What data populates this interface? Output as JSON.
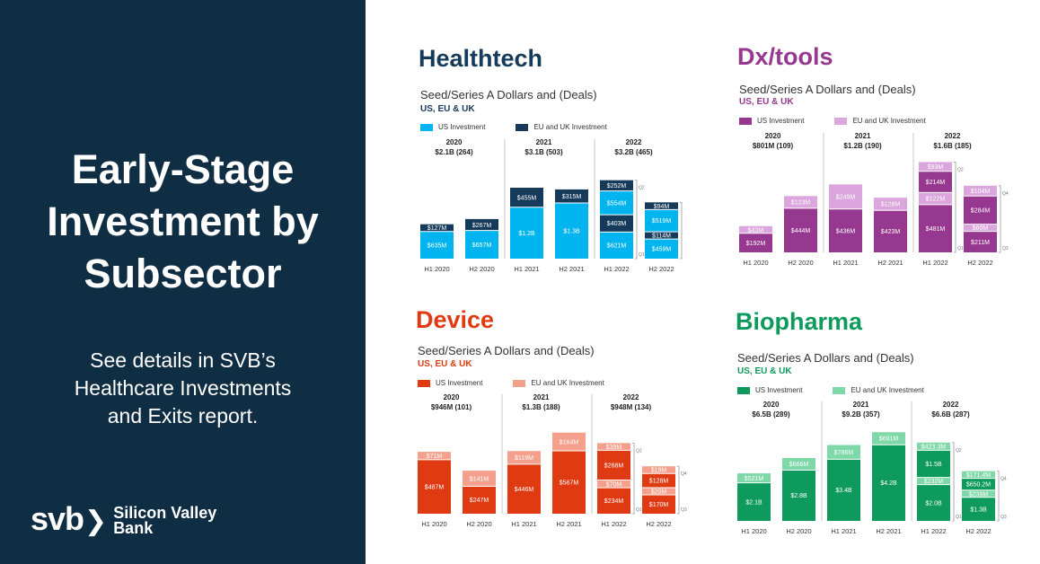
{
  "left": {
    "headline_lines": [
      "Early-Stage",
      "Investment by",
      "Subsector"
    ],
    "subtext_lines": [
      "See details in SVB’s",
      "Healthcare Investments",
      "and Exits report."
    ],
    "logo_mark": "svb",
    "logo_name_lines": [
      "Silicon Valley",
      "Bank"
    ],
    "bg_color": "#0f2d43"
  },
  "chart_data": [
    {
      "type": "bar",
      "title": "Healthtech",
      "subtitle": "Seed/Series A   Dollars and (Deals)",
      "region": "US, EU & UK",
      "legend": [
        "US Investment",
        "EU and UK Investment"
      ],
      "colors": {
        "us": "#00b5ef",
        "eu": "#153a5a",
        "title": "#153a5a",
        "label_us": "#ffffff",
        "label_eu": "#ffffff"
      },
      "categories": [
        "H1 2020",
        "H2 2020",
        "H1 2021",
        "H2 2021",
        "H1 2022",
        "H2 2022"
      ],
      "years": [
        {
          "year": "2020",
          "total": "$2.1B (264)"
        },
        {
          "year": "2021",
          "total": "$3.1B (503)"
        },
        {
          "year": "2022",
          "total": "$3.2B (465)"
        }
      ],
      "series": [
        {
          "name": "US Investment",
          "values": [
            635,
            657,
            1200,
            1300,
            621,
            459
          ],
          "labels": [
            "$635M",
            "$657M",
            "$1.2B",
            "$1.3B",
            "$621M",
            "$459M"
          ]
        },
        {
          "name": "EU and UK Investment",
          "values": [
            127,
            267,
            455,
            315,
            403,
            114
          ],
          "labels": [
            "$127M",
            "$267M",
            "$455M",
            "$315M",
            "$403M",
            "$114M"
          ]
        }
      ],
      "quarters": {
        "h1_2022_extra": {
          "us": {
            "value": 554,
            "label": "$554M"
          },
          "eu": {
            "value": 252,
            "label": "$252M"
          }
        },
        "h2_2022_extra": {
          "us": {
            "value": 519,
            "label": "$519M"
          },
          "eu": {
            "value": 94,
            "label": "$94M"
          }
        },
        "q_labels": [
          "Q1",
          "Q2",
          "Q3",
          "Q4"
        ]
      },
      "ylim": [
        0,
        2200
      ]
    },
    {
      "type": "bar",
      "title": "Dx/tools",
      "subtitle": "Seed/Series A   Dollars and (Deals)",
      "region": "US, EU & UK",
      "legend": [
        "US Investment",
        "EU and UK Investment"
      ],
      "colors": {
        "us": "#96388f",
        "eu": "#dba5dd",
        "title": "#96388f",
        "label_us": "#ffffff",
        "label_eu": "#ffffff"
      },
      "categories": [
        "H1 2020",
        "H2 2020",
        "H1 2021",
        "H2 2021",
        "H1 2022",
        "H2 2022"
      ],
      "years": [
        {
          "year": "2020",
          "total": "$801M (109)"
        },
        {
          "year": "2021",
          "total": "$1.2B (190)"
        },
        {
          "year": "2022",
          "total": "$1.6B (185)"
        }
      ],
      "series": [
        {
          "name": "US Investment",
          "values": [
            192,
            444,
            436,
            423,
            481,
            211
          ],
          "labels": [
            "$192M",
            "$444M",
            "$436M",
            "$423M",
            "$481M",
            "$211M"
          ]
        },
        {
          "name": "EU and UK Investment",
          "values": [
            43,
            123,
            249,
            128,
            122,
            60
          ],
          "labels": [
            "$43M",
            "$123M",
            "$249M",
            "$128M",
            "$122M",
            "$60M"
          ]
        }
      ],
      "quarters": {
        "h1_2022_extra": {
          "us": {
            "value": 214,
            "label": "$214M"
          },
          "eu": {
            "value": 93,
            "label": "$93M"
          }
        },
        "h2_2022_extra": {
          "us": {
            "value": 284,
            "label": "$284M"
          },
          "eu": {
            "value": 104,
            "label": "$104M"
          }
        },
        "q_labels": [
          "Q1",
          "Q2",
          "Q3",
          "Q4"
        ]
      },
      "ylim": [
        0,
        950
      ]
    },
    {
      "type": "bar",
      "title": "Device",
      "subtitle": "Seed/Series A   Dollars and (Deals)",
      "region": "US, EU & UK",
      "legend": [
        "US Investment",
        "EU and UK Investment"
      ],
      "colors": {
        "us": "#e03a12",
        "eu": "#f5a08c",
        "title": "#e03a12",
        "label_us": "#ffffff",
        "label_eu": "#ffffff"
      },
      "categories": [
        "H1 2020",
        "H2 2020",
        "H1 2021",
        "H2 2021",
        "H1 2022",
        "H2 2022"
      ],
      "years": [
        {
          "year": "2020",
          "total": "$946M (101)"
        },
        {
          "year": "2021",
          "total": "$1.3B (188)"
        },
        {
          "year": "2022",
          "total": "$948M (134)"
        }
      ],
      "series": [
        {
          "name": "US Investment",
          "values": [
            487,
            247,
            446,
            567,
            234,
            170
          ],
          "labels": [
            "$487M",
            "$247M",
            "$446M",
            "$567M",
            "$234M",
            "$170M"
          ]
        },
        {
          "name": "EU and UK Investment",
          "values": [
            71,
            141,
            119,
            164,
            70,
            20
          ],
          "labels": [
            "$71M",
            "$141M",
            "$119M",
            "$164M",
            "$70M",
            "$20M"
          ]
        }
      ],
      "quarters": {
        "h1_2022_extra": {
          "us": {
            "value": 268,
            "label": "$268M"
          },
          "eu": {
            "value": 39,
            "label": "$39M"
          }
        },
        "h2_2022_extra": {
          "us": {
            "value": 128,
            "label": "$128M"
          },
          "eu": {
            "value": 19,
            "label": "$19M"
          }
        },
        "q_labels": [
          "Q1",
          "Q2",
          "Q3",
          "Q4"
        ]
      },
      "ylim": [
        0,
        850
      ]
    },
    {
      "type": "bar",
      "title": "Biopharma",
      "subtitle": "Seed/Series A   Dollars and (Deals)",
      "region": "US, EU & UK",
      "legend": [
        "US Investment",
        "EU and UK Investment"
      ],
      "colors": {
        "us": "#0e9a5c",
        "eu": "#7fd8a8",
        "title": "#0e9a5c",
        "label_us": "#ffffff",
        "label_eu": "#ffffff"
      },
      "categories": [
        "H1 2020",
        "H2 2020",
        "H1 2021",
        "H2 2021",
        "H1 2022",
        "H2 2022"
      ],
      "years": [
        {
          "year": "2020",
          "total": "$6.5B (289)"
        },
        {
          "year": "2021",
          "total": "$9.2B (357)"
        },
        {
          "year": "2022",
          "total": "$6.6B (287)"
        }
      ],
      "series": [
        {
          "name": "US Investment",
          "values": [
            2100,
            2800,
            3400,
            4200,
            2000,
            1300
          ],
          "labels": [
            "$2.1B",
            "$2.8B",
            "$3.4B",
            "$4.2B",
            "$2.0B",
            "$1.3B"
          ]
        },
        {
          "name": "EU and UK Investment",
          "values": [
            521,
            666,
            786,
            691,
            232,
            239
          ],
          "labels": [
            "$521M",
            "$666M",
            "$786M",
            "$691M",
            "$232M",
            "$239M"
          ]
        }
      ],
      "quarters": {
        "h1_2022_extra": {
          "us": {
            "value": 1500,
            "label": "$1.5B"
          },
          "eu": {
            "value": 423.3,
            "label": "$423.3M"
          }
        },
        "h2_2022_extra": {
          "us": {
            "value": 650.2,
            "label": "$650.2M"
          },
          "eu": {
            "value": 171.4,
            "label": "$171.4M"
          }
        },
        "q_labels": [
          "Q1",
          "Q2",
          "Q3",
          "Q4"
        ]
      },
      "ylim": [
        0,
        5200
      ]
    }
  ]
}
